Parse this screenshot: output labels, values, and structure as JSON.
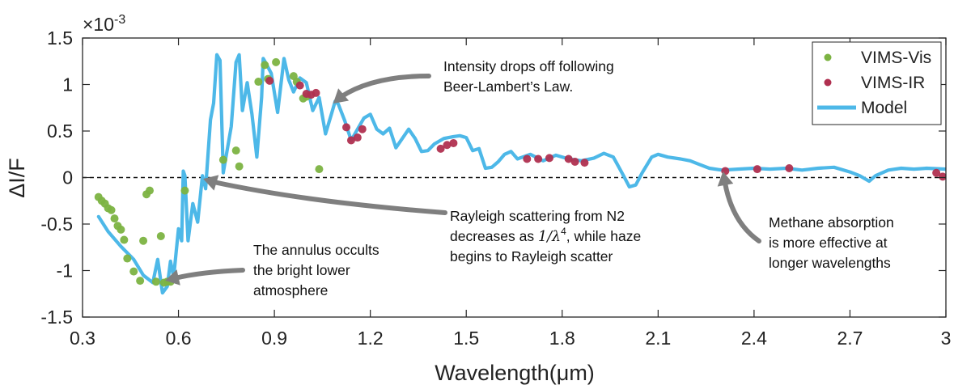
{
  "chart_data": {
    "type": "scatter",
    "xlabel": "Wavelength(μm)",
    "ylabel": "ΔI/F",
    "y_exponent_label": "×10",
    "y_exponent_power": "-3",
    "xlim": [
      0.3,
      3.0
    ],
    "ylim": [
      -1.5,
      1.5
    ],
    "x_ticks": [
      0.3,
      0.6,
      0.9,
      1.2,
      1.5,
      1.8,
      2.1,
      2.4,
      2.7,
      3.0
    ],
    "x_tick_labels": [
      "0.3",
      "0.6",
      "0.9",
      "1.2",
      "1.5",
      "1.8",
      "2.1",
      "2.4",
      "2.7",
      "3"
    ],
    "y_ticks": [
      -1.5,
      -1,
      -0.5,
      0,
      0.5,
      1,
      1.5
    ],
    "y_tick_labels": [
      "-1.5",
      "-1",
      "-0.5",
      "0",
      "0.5",
      "1",
      "1.5"
    ],
    "zero_line": true,
    "grid": false,
    "legend_position": "top-right",
    "series": [
      {
        "name": "VIMS-Vis",
        "kind": "scatter",
        "color": "#7cb342",
        "points": [
          [
            0.35,
            -0.21
          ],
          [
            0.36,
            -0.25
          ],
          [
            0.37,
            -0.28
          ],
          [
            0.38,
            -0.33
          ],
          [
            0.39,
            -0.35
          ],
          [
            0.4,
            -0.44
          ],
          [
            0.41,
            -0.52
          ],
          [
            0.42,
            -0.56
          ],
          [
            0.43,
            -0.67
          ],
          [
            0.44,
            -0.87
          ],
          [
            0.46,
            -1.01
          ],
          [
            0.48,
            -1.11
          ],
          [
            0.49,
            -0.68
          ],
          [
            0.5,
            -0.18
          ],
          [
            0.51,
            -0.14
          ],
          [
            0.53,
            -1.12
          ],
          [
            0.545,
            -0.63
          ],
          [
            0.555,
            -1.13
          ],
          [
            0.565,
            -1.12
          ],
          [
            0.575,
            -1.12
          ],
          [
            0.62,
            -0.14
          ],
          [
            0.74,
            0.19
          ],
          [
            0.78,
            0.29
          ],
          [
            0.79,
            0.12
          ],
          [
            0.85,
            1.03
          ],
          [
            0.87,
            1.21
          ],
          [
            0.88,
            1.06
          ],
          [
            0.905,
            1.24
          ],
          [
            0.96,
            1.09
          ],
          [
            0.97,
            1.03
          ],
          [
            0.99,
            0.85
          ],
          [
            1.0,
            0.87
          ],
          [
            1.04,
            0.09
          ]
        ]
      },
      {
        "name": "VIMS-IR",
        "kind": "scatter",
        "color": "#b03050",
        "points": [
          [
            0.885,
            1.04
          ],
          [
            0.98,
            0.99
          ],
          [
            1.0,
            0.9
          ],
          [
            1.015,
            0.89
          ],
          [
            1.03,
            0.91
          ],
          [
            1.125,
            0.54
          ],
          [
            1.14,
            0.4
          ],
          [
            1.16,
            0.43
          ],
          [
            1.175,
            0.52
          ],
          [
            1.42,
            0.31
          ],
          [
            1.44,
            0.35
          ],
          [
            1.46,
            0.37
          ],
          [
            1.69,
            0.2
          ],
          [
            1.725,
            0.2
          ],
          [
            1.76,
            0.21
          ],
          [
            1.82,
            0.2
          ],
          [
            1.84,
            0.17
          ],
          [
            1.87,
            0.16
          ],
          [
            2.31,
            0.07
          ],
          [
            2.41,
            0.09
          ],
          [
            2.51,
            0.1
          ],
          [
            2.97,
            0.05
          ],
          [
            2.99,
            0.01
          ]
        ]
      },
      {
        "name": "Model",
        "kind": "line",
        "color": "#4db8e8",
        "points": [
          [
            0.35,
            -0.42
          ],
          [
            0.38,
            -0.58
          ],
          [
            0.42,
            -0.74
          ],
          [
            0.46,
            -0.88
          ],
          [
            0.49,
            -1.05
          ],
          [
            0.52,
            -1.13
          ],
          [
            0.535,
            -0.88
          ],
          [
            0.55,
            -1.24
          ],
          [
            0.565,
            -1.17
          ],
          [
            0.575,
            -0.9
          ],
          [
            0.585,
            -1.07
          ],
          [
            0.6,
            -0.55
          ],
          [
            0.61,
            -0.68
          ],
          [
            0.615,
            0.07
          ],
          [
            0.62,
            0.02
          ],
          [
            0.63,
            -0.68
          ],
          [
            0.645,
            -0.28
          ],
          [
            0.66,
            -0.48
          ],
          [
            0.675,
            0.02
          ],
          [
            0.685,
            -0.12
          ],
          [
            0.7,
            0.62
          ],
          [
            0.71,
            0.8
          ],
          [
            0.72,
            1.32
          ],
          [
            0.73,
            1.26
          ],
          [
            0.74,
            0.05
          ],
          [
            0.765,
            0.55
          ],
          [
            0.78,
            1.24
          ],
          [
            0.79,
            1.32
          ],
          [
            0.8,
            0.72
          ],
          [
            0.815,
            1.02
          ],
          [
            0.83,
            0.68
          ],
          [
            0.845,
            0.22
          ],
          [
            0.86,
            0.86
          ],
          [
            0.865,
            1.28
          ],
          [
            0.875,
            1.22
          ],
          [
            0.89,
            1.12
          ],
          [
            0.91,
            0.7
          ],
          [
            0.93,
            1.28
          ],
          [
            0.945,
            1.05
          ],
          [
            0.96,
            0.92
          ],
          [
            0.98,
            1.07
          ],
          [
            1.0,
            1.02
          ],
          [
            1.02,
            0.72
          ],
          [
            1.04,
            0.86
          ],
          [
            1.06,
            0.47
          ],
          [
            1.08,
            0.7
          ],
          [
            1.09,
            0.82
          ],
          [
            1.1,
            0.79
          ],
          [
            1.12,
            0.61
          ],
          [
            1.14,
            0.4
          ],
          [
            1.16,
            0.52
          ],
          [
            1.18,
            0.64
          ],
          [
            1.2,
            0.68
          ],
          [
            1.22,
            0.52
          ],
          [
            1.24,
            0.47
          ],
          [
            1.26,
            0.53
          ],
          [
            1.28,
            0.32
          ],
          [
            1.3,
            0.42
          ],
          [
            1.32,
            0.52
          ],
          [
            1.34,
            0.42
          ],
          [
            1.36,
            0.28
          ],
          [
            1.38,
            0.29
          ],
          [
            1.4,
            0.36
          ],
          [
            1.43,
            0.42
          ],
          [
            1.46,
            0.44
          ],
          [
            1.48,
            0.45
          ],
          [
            1.5,
            0.43
          ],
          [
            1.52,
            0.29
          ],
          [
            1.54,
            0.31
          ],
          [
            1.56,
            0.1
          ],
          [
            1.58,
            0.11
          ],
          [
            1.6,
            0.17
          ],
          [
            1.62,
            0.25
          ],
          [
            1.64,
            0.28
          ],
          [
            1.66,
            0.2
          ],
          [
            1.7,
            0.25
          ],
          [
            1.74,
            0.18
          ],
          [
            1.78,
            0.24
          ],
          [
            1.82,
            0.2
          ],
          [
            1.86,
            0.18
          ],
          [
            1.9,
            0.21
          ],
          [
            1.93,
            0.26
          ],
          [
            1.96,
            0.22
          ],
          [
            1.99,
            0.03
          ],
          [
            2.01,
            -0.1
          ],
          [
            2.03,
            -0.08
          ],
          [
            2.05,
            0.05
          ],
          [
            2.08,
            0.22
          ],
          [
            2.1,
            0.25
          ],
          [
            2.13,
            0.22
          ],
          [
            2.17,
            0.2
          ],
          [
            2.2,
            0.18
          ],
          [
            2.23,
            0.14
          ],
          [
            2.26,
            0.1
          ],
          [
            2.3,
            0.08
          ],
          [
            2.35,
            0.09
          ],
          [
            2.4,
            0.1
          ],
          [
            2.45,
            0.09
          ],
          [
            2.5,
            0.1
          ],
          [
            2.55,
            0.08
          ],
          [
            2.6,
            0.1
          ],
          [
            2.65,
            0.11
          ],
          [
            2.7,
            0.06
          ],
          [
            2.73,
            0.02
          ],
          [
            2.76,
            -0.04
          ],
          [
            2.78,
            0.02
          ],
          [
            2.82,
            0.08
          ],
          [
            2.86,
            0.1
          ],
          [
            2.9,
            0.09
          ],
          [
            2.94,
            0.1
          ],
          [
            3.0,
            0.09
          ]
        ]
      }
    ],
    "annotations": [
      {
        "id": "beer-lambert",
        "lines": [
          [
            {
              "t": "Intensity drops off following"
            }
          ],
          [
            {
              "t": "Beer-Lambert’s Law."
            }
          ]
        ]
      },
      {
        "id": "rayleigh",
        "lines": [
          [
            {
              "t": "Rayleigh scattering from N2"
            }
          ],
          [
            {
              "t": "decreases as "
            },
            {
              "t": "1/λ",
              "math": true
            },
            {
              "t": "4",
              "sup": true
            },
            {
              "t": ", while haze"
            }
          ],
          [
            {
              "t": "begins to Rayleigh scatter"
            }
          ]
        ]
      },
      {
        "id": "annulus",
        "lines": [
          [
            {
              "t": "The annulus occults"
            }
          ],
          [
            {
              "t": "the bright lower"
            }
          ],
          [
            {
              "t": "atmosphere"
            }
          ]
        ]
      },
      {
        "id": "methane",
        "lines": [
          [
            {
              "t": "Methane absorption"
            }
          ],
          [
            {
              "t": "is more effective at"
            }
          ],
          [
            {
              "t": "longer wavelengths"
            }
          ]
        ]
      }
    ]
  }
}
